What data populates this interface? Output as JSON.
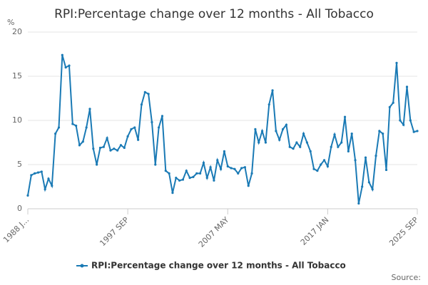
{
  "chart_data": {
    "type": "line",
    "title": "RPI:Percentage change over 12 months - All Tobacco",
    "y_unit": "%",
    "source": "Source:",
    "categories": [
      "1988 J...",
      null,
      null,
      null,
      null,
      null,
      null,
      null,
      null,
      null,
      null,
      null,
      null,
      null,
      null,
      null,
      null,
      null,
      null,
      null,
      null,
      null,
      null,
      null,
      null,
      null,
      null,
      null,
      null,
      "1997 SEP",
      null,
      null,
      null,
      null,
      null,
      null,
      null,
      null,
      null,
      null,
      null,
      null,
      null,
      null,
      null,
      null,
      null,
      null,
      null,
      null,
      null,
      null,
      null,
      null,
      null,
      null,
      null,
      null,
      "2007 MAY",
      null,
      null,
      null,
      null,
      null,
      null,
      null,
      null,
      null,
      null,
      null,
      null,
      null,
      null,
      null,
      null,
      null,
      null,
      null,
      null,
      null,
      null,
      null,
      null,
      null,
      null,
      null,
      null,
      "2017 JAN",
      null,
      null,
      null,
      null,
      null,
      null,
      null,
      null,
      null,
      null,
      null,
      null,
      null,
      null,
      null,
      null,
      null,
      null,
      null,
      null,
      null,
      null,
      null,
      null,
      null,
      "2025 SEP"
    ],
    "series": [
      {
        "name": "RPI:Percentage change over 12 months - All Tobacco",
        "color": "#1a7ab5",
        "values": [
          1.5,
          3.8,
          4.0,
          4.1,
          4.2,
          2.2,
          3.4,
          2.6,
          8.5,
          9.2,
          17.4,
          16.0,
          16.2,
          9.6,
          9.4,
          7.2,
          7.6,
          9.2,
          11.3,
          6.8,
          5.0,
          6.9,
          7.0,
          8.0,
          6.6,
          6.8,
          6.6,
          7.2,
          6.9,
          8.2,
          9.0,
          9.2,
          7.8,
          11.8,
          13.2,
          13.0,
          9.8,
          5.0,
          9.2,
          10.5,
          4.3,
          4.0,
          1.8,
          3.5,
          3.2,
          3.3,
          4.3,
          3.5,
          3.6,
          4.0,
          4.0,
          5.2,
          3.5,
          4.7,
          3.2,
          5.5,
          4.5,
          6.5,
          4.8,
          4.6,
          4.5,
          4.0,
          4.6,
          4.7,
          2.6,
          4.0,
          9.0,
          7.5,
          8.8,
          7.5,
          11.8,
          13.4,
          8.8,
          7.8,
          9.0,
          9.5,
          7.0,
          6.8,
          7.5,
          7.0,
          8.5,
          7.5,
          6.5,
          4.5,
          4.3,
          5.0,
          5.5,
          4.8,
          7.0,
          8.4,
          7.0,
          7.5,
          10.4,
          6.5,
          8.5,
          5.5,
          0.6,
          2.5,
          5.8,
          3.0,
          2.2,
          6.0,
          8.8,
          8.5,
          4.4,
          11.5,
          12.0,
          16.5,
          10.0,
          9.5,
          13.8,
          10.0,
          8.7,
          8.8
        ]
      }
    ],
    "ylim": [
      0,
      20
    ],
    "yticks": [
      0,
      5,
      10,
      15,
      20
    ],
    "grid": true,
    "legend": "bottom"
  }
}
